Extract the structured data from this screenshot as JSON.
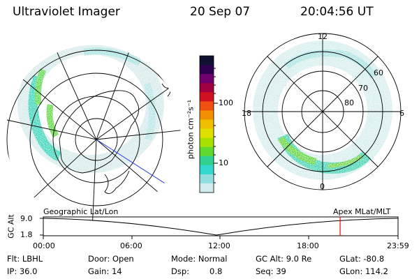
{
  "header": {
    "instrument": "Ultraviolet Imager",
    "date": "20 Sep 07",
    "time": "20:04:56 UT"
  },
  "colorbar": {
    "unit_label": "photon cm⁻²s⁻¹",
    "ticks": [
      "100",
      "10"
    ],
    "colors": [
      "#101030",
      "#300050",
      "#700070",
      "#a00040",
      "#d01020",
      "#f05010",
      "#f09000",
      "#f0c000",
      "#e0e000",
      "#a8e000",
      "#60d830",
      "#30d090",
      "#30d8d0",
      "#90e0e0",
      "#d0ecec"
    ]
  },
  "left_map": {
    "caption": "Geographic Lat/Lon"
  },
  "right_map": {
    "caption": "Apex MLat/MLT",
    "mlt_labels": {
      "top": "12",
      "bottom": "0",
      "left": "18",
      "right": "6"
    },
    "lat_labels": [
      "60",
      "70",
      "80"
    ]
  },
  "altitude_plot": {
    "ylabel": "GC Alt",
    "yticks": [
      "9.0",
      "1.8"
    ],
    "xticks": [
      "00:00",
      "06:00",
      "12:00",
      "18:00",
      "23:59"
    ],
    "current_time_marker_fraction": 0.8367,
    "marker_color": "#ff0000"
  },
  "info": {
    "filter_label": "Flt: LBHL",
    "ip_label": "IP: 36.0",
    "door_label": "Door: Open",
    "gain_label": "Gain: 14",
    "mode_label": "Mode: Normal",
    "dsp_label": "Dsp:",
    "dsp_value": "0.8",
    "gcalt_label": "GC Alt: 9.0 Re",
    "seq_label": "Seq: 39",
    "glat_label": "GLat: -80.8",
    "glon_label": "GLon: 114.2"
  }
}
